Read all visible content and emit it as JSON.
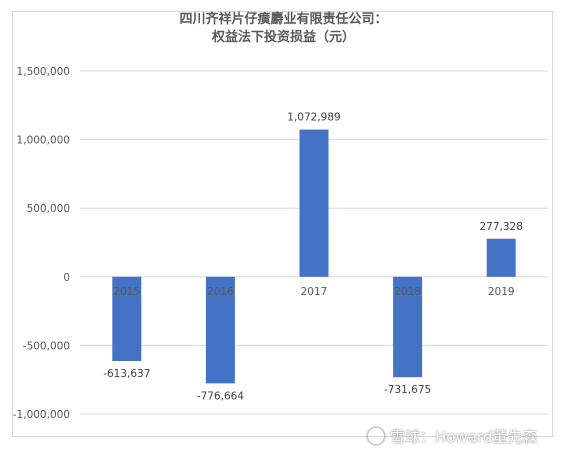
{
  "chart_data": {
    "type": "bar",
    "title": [
      "四川齐祥片仔癀麝业有限责任公司：",
      "权益法下投资损益（元）"
    ],
    "categories": [
      "2015",
      "2016",
      "2017",
      "2018",
      "2019"
    ],
    "values": [
      -613637,
      -776664,
      1072989,
      -731675,
      277328
    ],
    "data_labels": [
      "-613,637",
      "-776,664",
      "1,072,989",
      "-731,675",
      "277,328"
    ],
    "y_ticks": [
      "1,500,000",
      "1,000,000",
      "500,000",
      "0",
      "-500,000",
      "-1,000,000"
    ],
    "y_tick_values": [
      1500000,
      1000000,
      500000,
      0,
      -500000,
      -1000000
    ],
    "ylim": [
      -1000000,
      1500000
    ],
    "grid": true,
    "legend": "none",
    "bar_color": "#4472c4"
  },
  "watermark": {
    "icon": "snowball-icon",
    "text": "雪球：Howard董先森"
  }
}
